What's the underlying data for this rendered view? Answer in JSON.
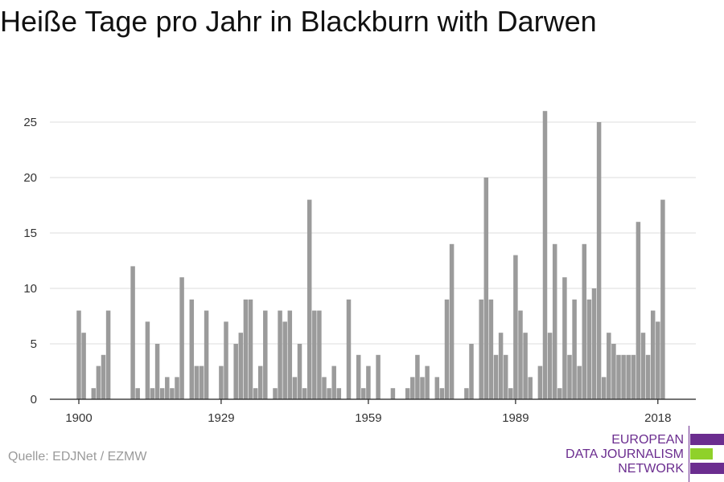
{
  "chart_data": {
    "type": "bar",
    "title": "Heiße Tage pro Jahr in Blackburn with Darwen",
    "xlabel": "",
    "ylabel": "",
    "x_start": 1900,
    "x_ticks": [
      1900,
      1929,
      1959,
      1989,
      2018
    ],
    "y_ticks": [
      0,
      5,
      10,
      15,
      20,
      25
    ],
    "ylim": [
      0,
      27
    ],
    "grid": true,
    "bar_color": "#9b9b9b",
    "values": [
      8,
      6,
      0,
      1,
      3,
      4,
      8,
      0,
      0,
      0,
      0,
      12,
      1,
      0,
      7,
      1,
      5,
      1,
      2,
      1,
      2,
      11,
      0,
      9,
      3,
      3,
      8,
      0,
      0,
      3,
      7,
      0,
      5,
      6,
      9,
      9,
      1,
      3,
      8,
      0,
      1,
      8,
      7,
      8,
      2,
      5,
      1,
      18,
      8,
      8,
      2,
      1,
      3,
      1,
      0,
      9,
      0,
      4,
      1,
      3,
      0,
      4,
      0,
      0,
      1,
      0,
      0,
      1,
      2,
      4,
      2,
      3,
      0,
      2,
      1,
      9,
      14,
      0,
      0,
      1,
      5,
      0,
      9,
      20,
      9,
      4,
      6,
      4,
      1,
      13,
      8,
      6,
      2,
      0,
      3,
      26,
      6,
      14,
      1,
      11,
      4,
      9,
      3,
      14,
      9,
      10,
      25,
      2,
      6,
      5,
      4,
      4,
      4,
      4,
      16,
      6,
      4,
      8,
      7,
      18
    ]
  },
  "source": "Quelle: EDJNet / EZMW",
  "logo": {
    "line1": "EUROPEAN",
    "line2": "DATA JOURNALISM",
    "line3": "NETWORK",
    "purple": "#6b2d8f",
    "green": "#8fd12a"
  }
}
